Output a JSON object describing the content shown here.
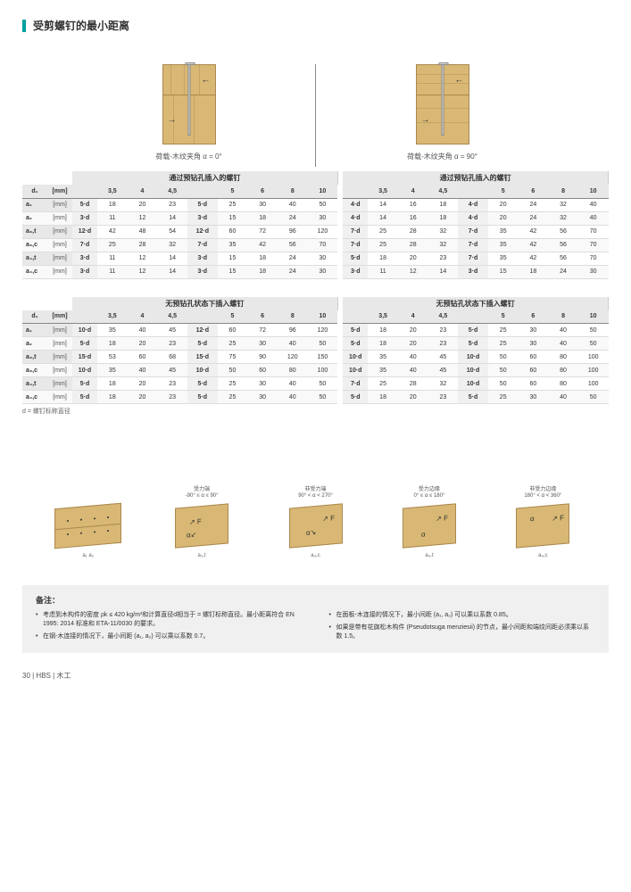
{
  "page_title": "受剪螺钉的最小距离",
  "diagram1_caption": "荷载-木纹夹角 α = 0°",
  "diagram2_caption": "荷载-木纹夹角 α = 90°",
  "table1": {
    "left_title": "通过预钻孔插入的螺钉",
    "right_title": "通过预钻孔插入的螺钉"
  },
  "table2": {
    "left_title": "无预钻孔状态下插入螺钉",
    "right_title": "无预钻孔状态下插入螺钉"
  },
  "d1_label": "d₁",
  "mm_unit": "[mm]",
  "column_headers": [
    "3,5",
    "4",
    "4,5",
    "5",
    "6",
    "8",
    "10",
    "12"
  ],
  "rows_t1": [
    {
      "label": "a₁",
      "unit": "[mm]",
      "formula": "5·d",
      "left": [
        "18",
        "20",
        "23",
        "5·d",
        "25",
        "30",
        "40",
        "50",
        "60"
      ],
      "f2": "4·d",
      "right": [
        "14",
        "16",
        "18",
        "4·d",
        "20",
        "24",
        "32",
        "40",
        "48"
      ]
    },
    {
      "label": "a₂",
      "unit": "[mm]",
      "formula": "3·d",
      "left": [
        "11",
        "12",
        "14",
        "3·d",
        "15",
        "18",
        "24",
        "30",
        "36"
      ],
      "f2": "4·d",
      "right": [
        "14",
        "16",
        "18",
        "4·d",
        "20",
        "24",
        "32",
        "40",
        "48"
      ]
    },
    {
      "label": "a₃,t",
      "unit": "[mm]",
      "formula": "12·d",
      "left": [
        "42",
        "48",
        "54",
        "12·d",
        "60",
        "72",
        "96",
        "120",
        "144"
      ],
      "f2": "7·d",
      "right": [
        "25",
        "28",
        "32",
        "7·d",
        "35",
        "42",
        "56",
        "70",
        "84"
      ]
    },
    {
      "label": "a₃,c",
      "unit": "[mm]",
      "formula": "7·d",
      "left": [
        "25",
        "28",
        "32",
        "7·d",
        "35",
        "42",
        "56",
        "70",
        "84"
      ],
      "f2": "7·d",
      "right": [
        "25",
        "28",
        "32",
        "7·d",
        "35",
        "42",
        "56",
        "70",
        "84"
      ]
    },
    {
      "label": "a₄,t",
      "unit": "[mm]",
      "formula": "3·d",
      "left": [
        "11",
        "12",
        "14",
        "3·d",
        "15",
        "18",
        "24",
        "30",
        "36"
      ],
      "f2": "5·d",
      "right": [
        "18",
        "20",
        "23",
        "7·d",
        "35",
        "42",
        "56",
        "70",
        "84"
      ]
    },
    {
      "label": "a₄,c",
      "unit": "[mm]",
      "formula": "3·d",
      "left": [
        "11",
        "12",
        "14",
        "3·d",
        "15",
        "18",
        "24",
        "30",
        "36"
      ],
      "f2": "3·d",
      "right": [
        "11",
        "12",
        "14",
        "3·d",
        "15",
        "18",
        "24",
        "30",
        "36"
      ]
    }
  ],
  "rows_t2": [
    {
      "label": "a₁",
      "unit": "[mm]",
      "formula": "10·d",
      "left": [
        "35",
        "40",
        "45",
        "12·d",
        "60",
        "72",
        "96",
        "120",
        "144"
      ],
      "f2": "5·d",
      "right": [
        "18",
        "20",
        "23",
        "5·d",
        "25",
        "30",
        "40",
        "50",
        "60"
      ]
    },
    {
      "label": "a₂",
      "unit": "[mm]",
      "formula": "5·d",
      "left": [
        "18",
        "20",
        "23",
        "5·d",
        "25",
        "30",
        "40",
        "50",
        "60"
      ],
      "f2": "5·d",
      "right": [
        "18",
        "20",
        "23",
        "5·d",
        "25",
        "30",
        "40",
        "50",
        "60"
      ]
    },
    {
      "label": "a₃,t",
      "unit": "[mm]",
      "formula": "15·d",
      "left": [
        "53",
        "60",
        "68",
        "15·d",
        "75",
        "90",
        "120",
        "150",
        "180"
      ],
      "f2": "10·d",
      "right": [
        "35",
        "40",
        "45",
        "10·d",
        "50",
        "60",
        "80",
        "100",
        "120"
      ]
    },
    {
      "label": "a₃,c",
      "unit": "[mm]",
      "formula": "10·d",
      "left": [
        "35",
        "40",
        "45",
        "10·d",
        "50",
        "60",
        "80",
        "100",
        "120"
      ],
      "f2": "10·d",
      "right": [
        "35",
        "40",
        "45",
        "10·d",
        "50",
        "60",
        "80",
        "100",
        "120"
      ]
    },
    {
      "label": "a₄,t",
      "unit": "[mm]",
      "formula": "5·d",
      "left": [
        "18",
        "20",
        "23",
        "5·d",
        "25",
        "30",
        "40",
        "50",
        "60"
      ],
      "f2": "7·d",
      "right": [
        "25",
        "28",
        "32",
        "10·d",
        "50",
        "60",
        "80",
        "100",
        "120"
      ]
    },
    {
      "label": "a₄,c",
      "unit": "[mm]",
      "formula": "5·d",
      "left": [
        "18",
        "20",
        "23",
        "5·d",
        "25",
        "30",
        "40",
        "50",
        "60"
      ],
      "f2": "5·d",
      "right": [
        "18",
        "20",
        "23",
        "5·d",
        "25",
        "30",
        "40",
        "50",
        "60"
      ]
    }
  ],
  "table_footnote": "d = 螺钉标称直径",
  "bottom_diagrams": [
    {
      "label1": "",
      "label2": ""
    },
    {
      "label1": "受力端",
      "label2": "-90° ≤ α ≤ 90°"
    },
    {
      "label1": "非受力端",
      "label2": "90° < α < 270°"
    },
    {
      "label1": "受力边缘",
      "label2": "0° ≤ α ≤ 180°"
    },
    {
      "label1": "非受力边缘",
      "label2": "180° < α < 360°"
    }
  ],
  "bottom_sublabels": [
    "a₁  a₂",
    "a₃,t",
    "a₃,c",
    "a₄,t",
    "a₄,c"
  ],
  "notes": {
    "title": "备注：",
    "left": [
      "考虑到木构件的密度 ρk ≤ 420 kg/m³和计算直径d相当于 = 螺钉标称直径。最小距离符合 EN 1995: 2014 标准和 ETA-11/0030 的要求。",
      "在钢-木连接的情况下，最小间距 (a₁, a₂) 可以乘以系数 0.7。"
    ],
    "right": [
      "在面板-木连接的情况下，最小间距 (a₁, a₂) 可以乘以系数 0.85。",
      "如果是带有花旗松木构件 (Pseudotsuga menziesii) 的节点，最小间距和端纹间距必须乘以系数 1.5。"
    ]
  },
  "footer": "30 | HBS | 木工",
  "colors": {
    "teal": "#00a0a0",
    "wood": "#d8b874",
    "wood_border": "#aa8850",
    "grey_bg": "#e8e8e8"
  }
}
